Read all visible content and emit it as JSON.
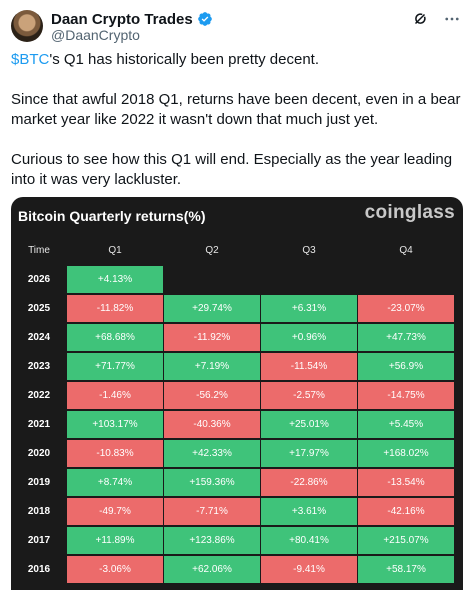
{
  "author": {
    "display_name": "Daan Crypto Trades",
    "handle": "@DaanCrypto"
  },
  "header_icons": [
    "grok-icon",
    "more-icon"
  ],
  "tweet": {
    "cashtag": "$BTC",
    "line1_rest": "'s Q1 has historically been pretty decent.",
    "para2": "Since that awful 2018 Q1, returns have been decent, even in a bear market year like 2022 it wasn't down that much just yet.",
    "para3": "Curious to see how this Q1 will end. Especially as the year leading into it was very lackluster."
  },
  "card": {
    "title": "Bitcoin Quarterly returns(%)",
    "brand": "coinglass",
    "colors": {
      "positive": "#3fc37a",
      "negative": "#ec6b6b",
      "background": "#1a1a1a"
    }
  },
  "chart_data": {
    "type": "table",
    "title": "Bitcoin Quarterly returns(%)",
    "columns": [
      "Time",
      "Q1",
      "Q2",
      "Q3",
      "Q4"
    ],
    "rows": [
      {
        "year": "2026",
        "q": [
          "+4.13%",
          "",
          "",
          ""
        ]
      },
      {
        "year": "2025",
        "q": [
          "-11.82%",
          "+29.74%",
          "+6.31%",
          "-23.07%"
        ]
      },
      {
        "year": "2024",
        "q": [
          "+68.68%",
          "-11.92%",
          "+0.96%",
          "+47.73%"
        ]
      },
      {
        "year": "2023",
        "q": [
          "+71.77%",
          "+7.19%",
          "-11.54%",
          "+56.9%"
        ]
      },
      {
        "year": "2022",
        "q": [
          "-1.46%",
          "-56.2%",
          "-2.57%",
          "-14.75%"
        ]
      },
      {
        "year": "2021",
        "q": [
          "+103.17%",
          "-40.36%",
          "+25.01%",
          "+5.45%"
        ]
      },
      {
        "year": "2020",
        "q": [
          "-10.83%",
          "+42.33%",
          "+17.97%",
          "+168.02%"
        ]
      },
      {
        "year": "2019",
        "q": [
          "+8.74%",
          "+159.36%",
          "-22.86%",
          "-13.54%"
        ]
      },
      {
        "year": "2018",
        "q": [
          "-49.7%",
          "-7.71%",
          "+3.61%",
          "-42.16%"
        ]
      },
      {
        "year": "2017",
        "q": [
          "+11.89%",
          "+123.86%",
          "+80.41%",
          "+215.07%"
        ]
      },
      {
        "year": "2016",
        "q": [
          "-3.06%",
          "+62.06%",
          "-9.41%",
          "+58.17%"
        ]
      }
    ]
  }
}
